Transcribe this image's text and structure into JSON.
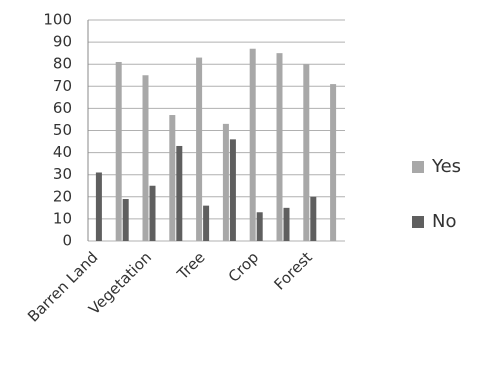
{
  "chart_data": {
    "type": "bar",
    "categories": [
      "Barren Land",
      null,
      "Vegetation",
      null,
      "Tree",
      null,
      "Crop",
      null,
      "Forest",
      null
    ],
    "series": [
      {
        "name": "Yes",
        "color": "#a8a8a8",
        "values": [
          null,
          81,
          75,
          57,
          83,
          53,
          87,
          85,
          80,
          71
        ]
      },
      {
        "name": "No",
        "color": "#5f5f5f",
        "values": [
          31,
          19,
          25,
          43,
          16,
          46,
          13,
          15,
          20,
          null
        ]
      }
    ],
    "ylim": [
      0,
      100
    ],
    "yticks": [
      0,
      10,
      20,
      30,
      40,
      50,
      60,
      70,
      80,
      90,
      100
    ],
    "grid": true,
    "legend": "right"
  }
}
